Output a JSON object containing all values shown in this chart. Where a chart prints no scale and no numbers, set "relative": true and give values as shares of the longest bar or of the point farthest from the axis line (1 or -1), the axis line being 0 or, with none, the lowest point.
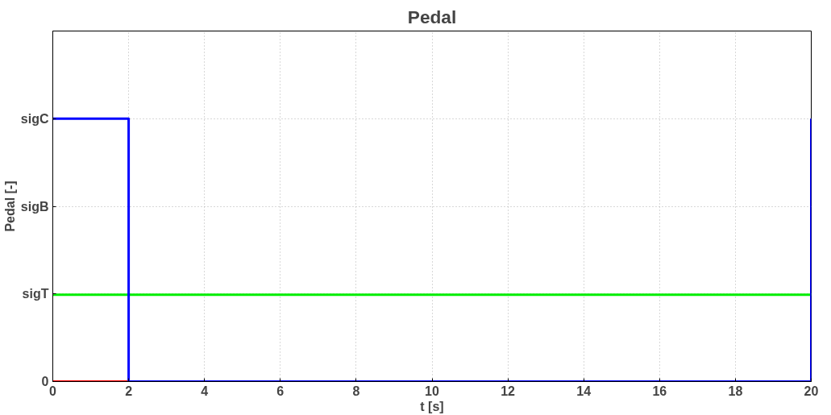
{
  "chart_data": {
    "type": "line",
    "title": "Pedal",
    "xlabel": "t [s]",
    "ylabel": "Pedal [-]",
    "xlim": [
      0,
      20
    ],
    "xticks": [
      0,
      2,
      4,
      6,
      8,
      10,
      12,
      14,
      16,
      18,
      20
    ],
    "relative": true,
    "grid": true,
    "line_style": "solid",
    "annotations": [
      "0",
      "sigT",
      "sigB",
      "sigC"
    ],
    "series": [
      {
        "color": "#ff0000",
        "x": [
          0,
          2
        ],
        "values": [
          0,
          0
        ]
      },
      {
        "color": "#00ee00",
        "x": [
          0,
          20
        ],
        "values": [
          0.33,
          0.33
        ]
      },
      {
        "color": "#0000ff",
        "x": [
          0,
          2,
          2,
          20,
          20
        ],
        "values": [
          1,
          1,
          0,
          0,
          1
        ]
      }
    ]
  }
}
